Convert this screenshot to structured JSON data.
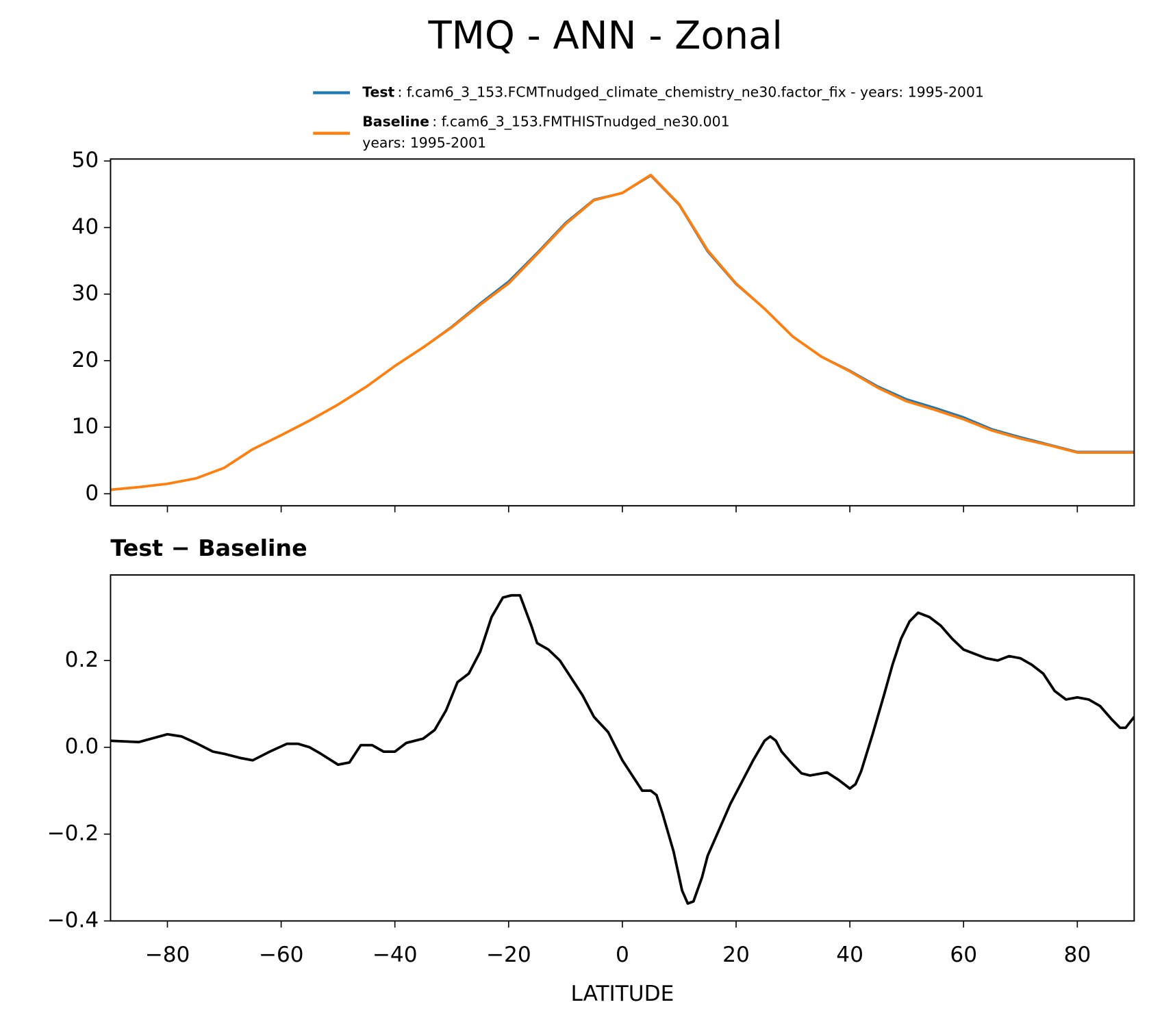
{
  "title": "TMQ - ANN - Zonal",
  "chart_data": [
    {
      "type": "line",
      "x": [
        -90,
        -85,
        -80,
        -75,
        -70,
        -65,
        -60,
        -55,
        -50,
        -45,
        -40,
        -35,
        -30,
        -25,
        -20,
        -15,
        -10,
        -5,
        0,
        5,
        10,
        15,
        20,
        25,
        30,
        35,
        40,
        45,
        50,
        55,
        60,
        65,
        70,
        75,
        80,
        85,
        90
      ],
      "series": [
        {
          "name": "Test",
          "description": [
            ": f.cam6_3_153.FCMTnudged_climate_chemistry_ne30.factor_fix - years: 1995-2001"
          ],
          "color": "#1f77b4",
          "values": [
            0.6,
            1.0,
            1.5,
            2.3,
            3.9,
            6.7,
            8.8,
            11.0,
            13.4,
            16.1,
            19.2,
            22.0,
            25.1,
            28.6,
            31.9,
            36.2,
            40.7,
            44.2,
            45.2,
            47.8,
            43.4,
            36.4,
            31.5,
            27.8,
            23.6,
            20.6,
            18.5,
            16.1,
            14.2,
            12.9,
            11.5,
            9.7,
            8.5,
            7.4,
            6.3,
            6.3,
            6.3
          ]
        },
        {
          "name": "Baseline",
          "description": [
            ": f.cam6_3_153.FMTHISTnudged_ne30.001",
            "years: 1995-2001"
          ],
          "color": "#ff7f0e",
          "values": [
            0.6,
            1.0,
            1.5,
            2.3,
            3.9,
            6.7,
            8.8,
            11.0,
            13.4,
            16.1,
            19.2,
            22.0,
            25.0,
            28.4,
            31.6,
            36.0,
            40.5,
            44.1,
            45.2,
            47.9,
            43.5,
            36.6,
            31.6,
            27.8,
            23.6,
            20.6,
            18.4,
            15.9,
            13.9,
            12.6,
            11.2,
            9.5,
            8.3,
            7.3,
            6.2,
            6.2,
            6.2
          ]
        }
      ],
      "xlim": [
        -90,
        90
      ],
      "xticks": [
        -80,
        -60,
        -40,
        -20,
        0,
        20,
        40,
        60,
        80
      ],
      "ylim": [
        -1.8,
        50.3
      ],
      "yticks": [
        0,
        10,
        20,
        30,
        40,
        50
      ]
    },
    {
      "type": "line",
      "title": "Test − Baseline",
      "xlabel": "LATITUDE",
      "x": [
        -90,
        -85,
        -80,
        -77.5,
        -75,
        -72,
        -70,
        -67,
        -65,
        -62,
        -59,
        -57,
        -55,
        -53,
        -50,
        -48,
        -46,
        -44,
        -42,
        -40,
        -38,
        -35,
        -33,
        -31,
        -29,
        -27,
        -25,
        -23,
        -21,
        -19.5,
        -18,
        -16,
        -15,
        -13,
        -11,
        -9,
        -7,
        -5,
        -2.5,
        0,
        2,
        3.5,
        5,
        6,
        7,
        9,
        10.5,
        11.5,
        12.5,
        14,
        15,
        17,
        19,
        21,
        23,
        25,
        26,
        27,
        28,
        30,
        31.5,
        33,
        36,
        38,
        40,
        41,
        42,
        44,
        46,
        47.5,
        49,
        50.5,
        52,
        54,
        56,
        58,
        60,
        62,
        64,
        66,
        68,
        70,
        72,
        74,
        76,
        78,
        80,
        82,
        84,
        86,
        87.5,
        88.5,
        90
      ],
      "series": [
        {
          "name": "Test − Baseline",
          "color": "#000000",
          "values": [
            0.015,
            0.012,
            0.03,
            0.025,
            0.01,
            -0.01,
            -0.015,
            -0.025,
            -0.03,
            -0.01,
            0.008,
            0.008,
            0.0,
            -0.015,
            -0.04,
            -0.035,
            0.005,
            0.005,
            -0.01,
            -0.01,
            0.01,
            0.02,
            0.04,
            0.085,
            0.15,
            0.17,
            0.22,
            0.3,
            0.345,
            0.35,
            0.35,
            0.28,
            0.24,
            0.225,
            0.2,
            0.16,
            0.12,
            0.07,
            0.035,
            -0.03,
            -0.07,
            -0.1,
            -0.1,
            -0.11,
            -0.15,
            -0.24,
            -0.33,
            -0.36,
            -0.355,
            -0.3,
            -0.25,
            -0.19,
            -0.13,
            -0.08,
            -0.03,
            0.015,
            0.025,
            0.015,
            -0.01,
            -0.04,
            -0.06,
            -0.065,
            -0.058,
            -0.075,
            -0.095,
            -0.085,
            -0.055,
            0.03,
            0.12,
            0.19,
            0.25,
            0.29,
            0.31,
            0.3,
            0.28,
            0.25,
            0.225,
            0.215,
            0.205,
            0.2,
            0.21,
            0.205,
            0.19,
            0.17,
            0.13,
            0.11,
            0.115,
            0.11,
            0.095,
            0.065,
            0.045,
            0.045,
            0.07
          ]
        }
      ],
      "xlim": [
        -90,
        90
      ],
      "xticks": [
        {
          "value": -80,
          "label": "−80"
        },
        {
          "value": -60,
          "label": "−60"
        },
        {
          "value": -40,
          "label": "−40"
        },
        {
          "value": -20,
          "label": "−20"
        },
        0,
        20,
        40,
        60,
        80
      ],
      "ylim": [
        -0.4,
        0.397
      ],
      "yticks": [
        {
          "value": -0.4,
          "label": "−0.4"
        },
        {
          "value": -0.2,
          "label": "−0.2"
        },
        {
          "value": 0,
          "label": "0.0"
        },
        0.2
      ]
    }
  ]
}
